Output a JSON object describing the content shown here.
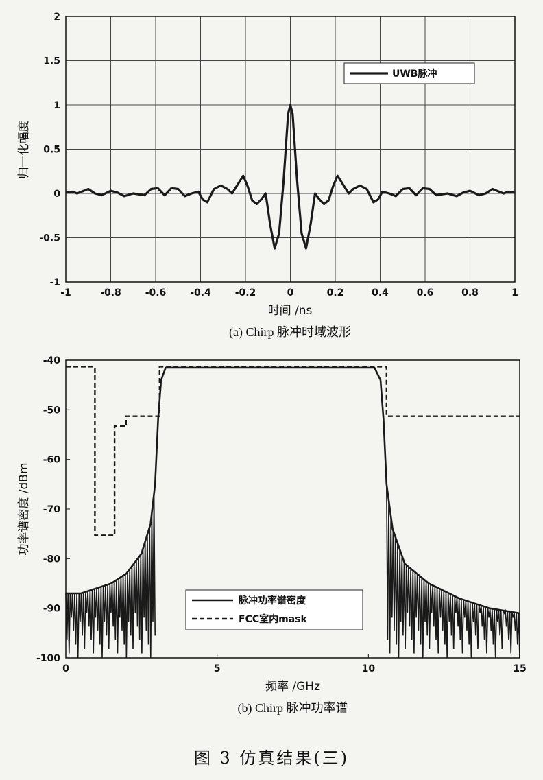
{
  "figure_caption": "图 3   仿真结果(三)",
  "chart_data": [
    {
      "type": "line",
      "caption": "(a) Chirp 脉冲时域波形",
      "xlabel": "时间 /ns",
      "ylabel": "归一化幅度",
      "xlim": [
        -1,
        1
      ],
      "ylim": [
        -1,
        2
      ],
      "x_ticks": [
        -1,
        -0.8,
        -0.6,
        -0.4,
        -0.2,
        0,
        0.2,
        0.4,
        0.6,
        0.8,
        1
      ],
      "x_tick_labels": [
        "-1",
        "-0.8",
        "-0.6",
        "-0.4",
        "-0.2",
        "0",
        "0.2",
        "0.4",
        "0.6",
        "0.8",
        "1"
      ],
      "y_ticks": [
        -1,
        -0.5,
        0,
        0.5,
        1,
        1.5,
        2
      ],
      "y_tick_labels": [
        "-1",
        "-0.5",
        "0",
        "0.5",
        "1",
        "1.5",
        "2"
      ],
      "grid": true,
      "legend_position": "top-right",
      "series": [
        {
          "name": "UWB脉冲",
          "color": "#1a1a1a",
          "points": [
            [
              -1.0,
              0.01
            ],
            [
              -0.97,
              0.02
            ],
            [
              -0.95,
              0.0
            ],
            [
              -0.92,
              0.03
            ],
            [
              -0.9,
              0.05
            ],
            [
              -0.87,
              0.0
            ],
            [
              -0.84,
              -0.02
            ],
            [
              -0.8,
              0.03
            ],
            [
              -0.77,
              0.01
            ],
            [
              -0.74,
              -0.03
            ],
            [
              -0.7,
              0.0
            ],
            [
              -0.65,
              -0.02
            ],
            [
              -0.62,
              0.05
            ],
            [
              -0.59,
              0.06
            ],
            [
              -0.56,
              -0.02
            ],
            [
              -0.53,
              0.06
            ],
            [
              -0.5,
              0.05
            ],
            [
              -0.47,
              -0.03
            ],
            [
              -0.44,
              0.0
            ],
            [
              -0.41,
              0.02
            ],
            [
              -0.39,
              -0.07
            ],
            [
              -0.37,
              -0.1
            ],
            [
              -0.34,
              0.05
            ],
            [
              -0.31,
              0.09
            ],
            [
              -0.28,
              0.05
            ],
            [
              -0.26,
              0.0
            ],
            [
              -0.23,
              0.12
            ],
            [
              -0.21,
              0.2
            ],
            [
              -0.19,
              0.08
            ],
            [
              -0.17,
              -0.08
            ],
            [
              -0.15,
              -0.12
            ],
            [
              -0.13,
              -0.07
            ],
            [
              -0.11,
              0.0
            ],
            [
              -0.09,
              -0.35
            ],
            [
              -0.07,
              -0.62
            ],
            [
              -0.05,
              -0.45
            ],
            [
              -0.03,
              0.15
            ],
            [
              -0.01,
              0.9
            ],
            [
              0.0,
              1.0
            ],
            [
              0.01,
              0.9
            ],
            [
              0.03,
              0.15
            ],
            [
              0.05,
              -0.45
            ],
            [
              0.07,
              -0.62
            ],
            [
              0.09,
              -0.35
            ],
            [
              0.11,
              0.0
            ],
            [
              0.13,
              -0.07
            ],
            [
              0.15,
              -0.12
            ],
            [
              0.17,
              -0.08
            ],
            [
              0.19,
              0.08
            ],
            [
              0.21,
              0.2
            ],
            [
              0.23,
              0.12
            ],
            [
              0.26,
              0.0
            ],
            [
              0.28,
              0.05
            ],
            [
              0.31,
              0.09
            ],
            [
              0.34,
              0.05
            ],
            [
              0.37,
              -0.1
            ],
            [
              0.39,
              -0.07
            ],
            [
              0.41,
              0.02
            ],
            [
              0.44,
              0.0
            ],
            [
              0.47,
              -0.03
            ],
            [
              0.5,
              0.05
            ],
            [
              0.53,
              0.06
            ],
            [
              0.56,
              -0.02
            ],
            [
              0.59,
              0.06
            ],
            [
              0.62,
              0.05
            ],
            [
              0.65,
              -0.02
            ],
            [
              0.7,
              0.0
            ],
            [
              0.74,
              -0.03
            ],
            [
              0.77,
              0.01
            ],
            [
              0.8,
              0.03
            ],
            [
              0.84,
              -0.02
            ],
            [
              0.87,
              0.0
            ],
            [
              0.9,
              0.05
            ],
            [
              0.92,
              0.03
            ],
            [
              0.95,
              0.0
            ],
            [
              0.97,
              0.02
            ],
            [
              1.0,
              0.01
            ]
          ]
        }
      ]
    },
    {
      "type": "line",
      "caption": "(b) Chirp 脉冲功率谱",
      "xlabel": "频率 /GHz",
      "ylabel": "功率谱密度 /dBm",
      "xlim": [
        0,
        15
      ],
      "ylim": [
        -100,
        -40
      ],
      "x_ticks": [
        0,
        5,
        10,
        15
      ],
      "x_tick_labels": [
        "0",
        "5",
        "10",
        "15"
      ],
      "y_ticks": [
        -100,
        -90,
        -80,
        -70,
        -60,
        -50,
        -40
      ],
      "y_tick_labels": [
        "-100",
        "-90",
        "-80",
        "-70",
        "-60",
        "-50",
        "-40"
      ],
      "grid": false,
      "legend_position": "bottom-right",
      "series": [
        {
          "name": "脉冲功率谱密度",
          "color": "#1a1a1a",
          "style": "solid",
          "envelope_upper": [
            [
              0,
              -87
            ],
            [
              0.5,
              -87
            ],
            [
              1.0,
              -86
            ],
            [
              1.5,
              -85
            ],
            [
              2.0,
              -83
            ],
            [
              2.5,
              -79
            ],
            [
              2.8,
              -73
            ],
            [
              2.95,
              -65
            ],
            [
              3.05,
              -52
            ],
            [
              3.15,
              -44
            ],
            [
              3.3,
              -41.5
            ],
            [
              5,
              -41.5
            ],
            [
              10,
              -41.5
            ],
            [
              10.2,
              -41.5
            ],
            [
              10.4,
              -44
            ],
            [
              10.5,
              -52
            ],
            [
              10.6,
              -65
            ],
            [
              10.8,
              -74
            ],
            [
              11.2,
              -81
            ],
            [
              12,
              -85
            ],
            [
              13,
              -88
            ],
            [
              14,
              -90
            ],
            [
              15,
              -91
            ]
          ],
          "noise_floor": -100,
          "noise_band": [
            [
              0,
              2.95
            ],
            [
              10.6,
              15
            ]
          ]
        },
        {
          "name": "FCC室内mask",
          "color": "#1a1a1a",
          "style": "dashed",
          "points": [
            [
              0,
              -41.3
            ],
            [
              0.96,
              -41.3
            ],
            [
              0.96,
              -75.3
            ],
            [
              1.61,
              -75.3
            ],
            [
              1.61,
              -53.3
            ],
            [
              1.99,
              -53.3
            ],
            [
              1.99,
              -51.3
            ],
            [
              3.1,
              -51.3
            ],
            [
              3.1,
              -41.3
            ],
            [
              10.6,
              -41.3
            ],
            [
              10.6,
              -51.3
            ],
            [
              15,
              -51.3
            ]
          ]
        }
      ]
    }
  ]
}
